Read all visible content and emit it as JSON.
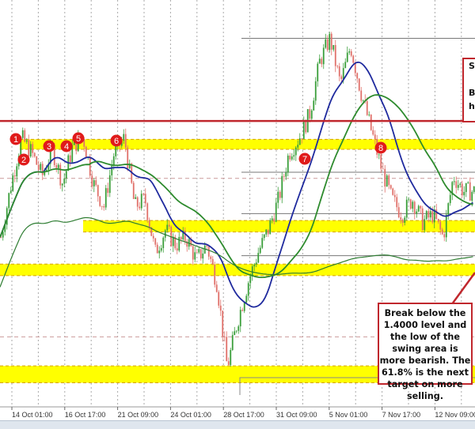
{
  "chart_data": {
    "type": "candlestick",
    "title": "",
    "xlabel": "",
    "ylabel": "",
    "x_tick_labels": [
      "14 Oct 01:00",
      "16 Oct 17:00",
      "21 Oct 09:00",
      "24 Oct 01:00",
      "28 Oct 17:00",
      "31 Oct 09:00",
      "5 Nov 01:00",
      "7 Nov 17:00",
      "12 Nov 09:00"
    ],
    "approx_closes": [
      1.3986,
      1.4056,
      1.4116,
      1.4096,
      1.4066,
      1.4101,
      1.4056,
      1.4106,
      1.4116,
      1.4056,
      1.4026,
      1.4096,
      1.4116,
      1.4026,
      1.4036,
      1.3966,
      1.3996,
      1.3976,
      1.3986,
      1.3956,
      1.3976,
      1.3926,
      1.3816,
      1.3876,
      1.3926,
      1.3966,
      1.3996,
      1.4036,
      1.4096,
      1.4116,
      1.4146,
      1.4216,
      1.4246,
      1.4186,
      1.4236,
      1.4176,
      1.4126,
      1.4076,
      1.4036,
      1.4016,
      1.4036,
      1.4006,
      1.4016,
      1.3986,
      1.4066,
      1.4046,
      1.4046
    ],
    "ylim": [
      1.378,
      1.4296
    ],
    "grid": true,
    "moving_averages": [
      {
        "color": "#1f2a9e"
      },
      {
        "color": "#2e8b2e"
      },
      {
        "color": "#2e7d32"
      }
    ],
    "resistance_line": {
      "price": 1.4138,
      "color": "#c0272d"
    },
    "yellow_zones": [
      [
        1.4101,
        1.4114
      ],
      [
        1.3993,
        1.4008
      ],
      [
        1.3936,
        1.3951
      ],
      [
        1.3796,
        1.3818
      ]
    ],
    "fib_lines": [
      1.4246,
      1.4071,
      1.4017,
      1.3962
    ],
    "markers": [
      "1",
      "2",
      "3",
      "4",
      "5",
      "6",
      "7",
      "8"
    ],
    "colors": {
      "up": "#3a9e3a",
      "down": "#e0706a",
      "zone": "#ffff00",
      "marker": "#e01b1b"
    }
  },
  "annotations": {
    "top_right_lines": [
      "S",
      "",
      "B",
      "ho"
    ],
    "bottom_right": "Break below the 1.4000 level and the low of the swing area is more bearish.  The 61.8% is the next target on more selling."
  }
}
